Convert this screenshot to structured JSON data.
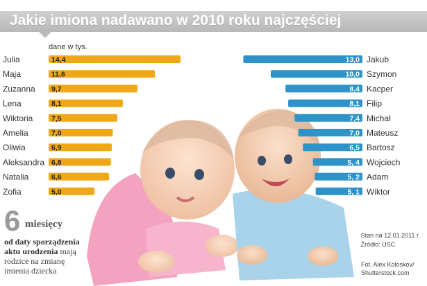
{
  "title": "Jakie imiona nadawano w 2010 roku najczęściej",
  "unit_note": "dane w tys.",
  "colors": {
    "girls_bar": "#f0a818",
    "boys_bar": "#2e93c8",
    "header_bg": "#c2c2c2"
  },
  "chart_data": [
    {
      "type": "bar",
      "orientation": "horizontal",
      "direction": "left-to-right",
      "categories": [
        "Julia",
        "Maja",
        "Zuzanna",
        "Lena",
        "Wiktoria",
        "Amelia",
        "Oliwia",
        "Aleksandra",
        "Natalia",
        "Zofia"
      ],
      "values": [
        14.4,
        11.6,
        9.7,
        8.1,
        7.5,
        7.0,
        6.9,
        6.8,
        6.6,
        5.0
      ],
      "labels": [
        "14,4",
        "11,6",
        "9,7",
        "8,1",
        "7,5",
        "7,0",
        "6,9",
        "6,8",
        "6,6",
        "5,0"
      ],
      "color": "#f0a818"
    },
    {
      "type": "bar",
      "orientation": "horizontal",
      "direction": "right-to-left",
      "categories": [
        "Jakub",
        "Szymon",
        "Kacper",
        "Filip",
        "Michał",
        "Mateusz",
        "Bartosz",
        "Wojciech",
        "Adam",
        "Wiktor"
      ],
      "values": [
        13.0,
        10.0,
        8.4,
        8.1,
        7.4,
        7.0,
        6.5,
        5.4,
        5.2,
        5.1
      ],
      "labels": [
        "13,0",
        "10,0",
        "8,4",
        "8,1",
        "7,4",
        "7,0",
        "6,5",
        "5, 4",
        "5, 2",
        "5, 1"
      ],
      "color": "#2e93c8"
    }
  ],
  "note": {
    "number": "6",
    "word": "miesięcy",
    "line1": "od daty sporządzenia",
    "line2_bold": "aktu urodzenia",
    "line2_rest": " mają",
    "line3": "rodzice na zmianę",
    "line4": "imienia dziecka"
  },
  "stamp": {
    "date": "Stan na 12.01.2011 r.",
    "source": "Źródło: USC"
  },
  "credit": {
    "line1": "Fot. Alex Koloskov/",
    "line2": "Shutterstock.com"
  }
}
